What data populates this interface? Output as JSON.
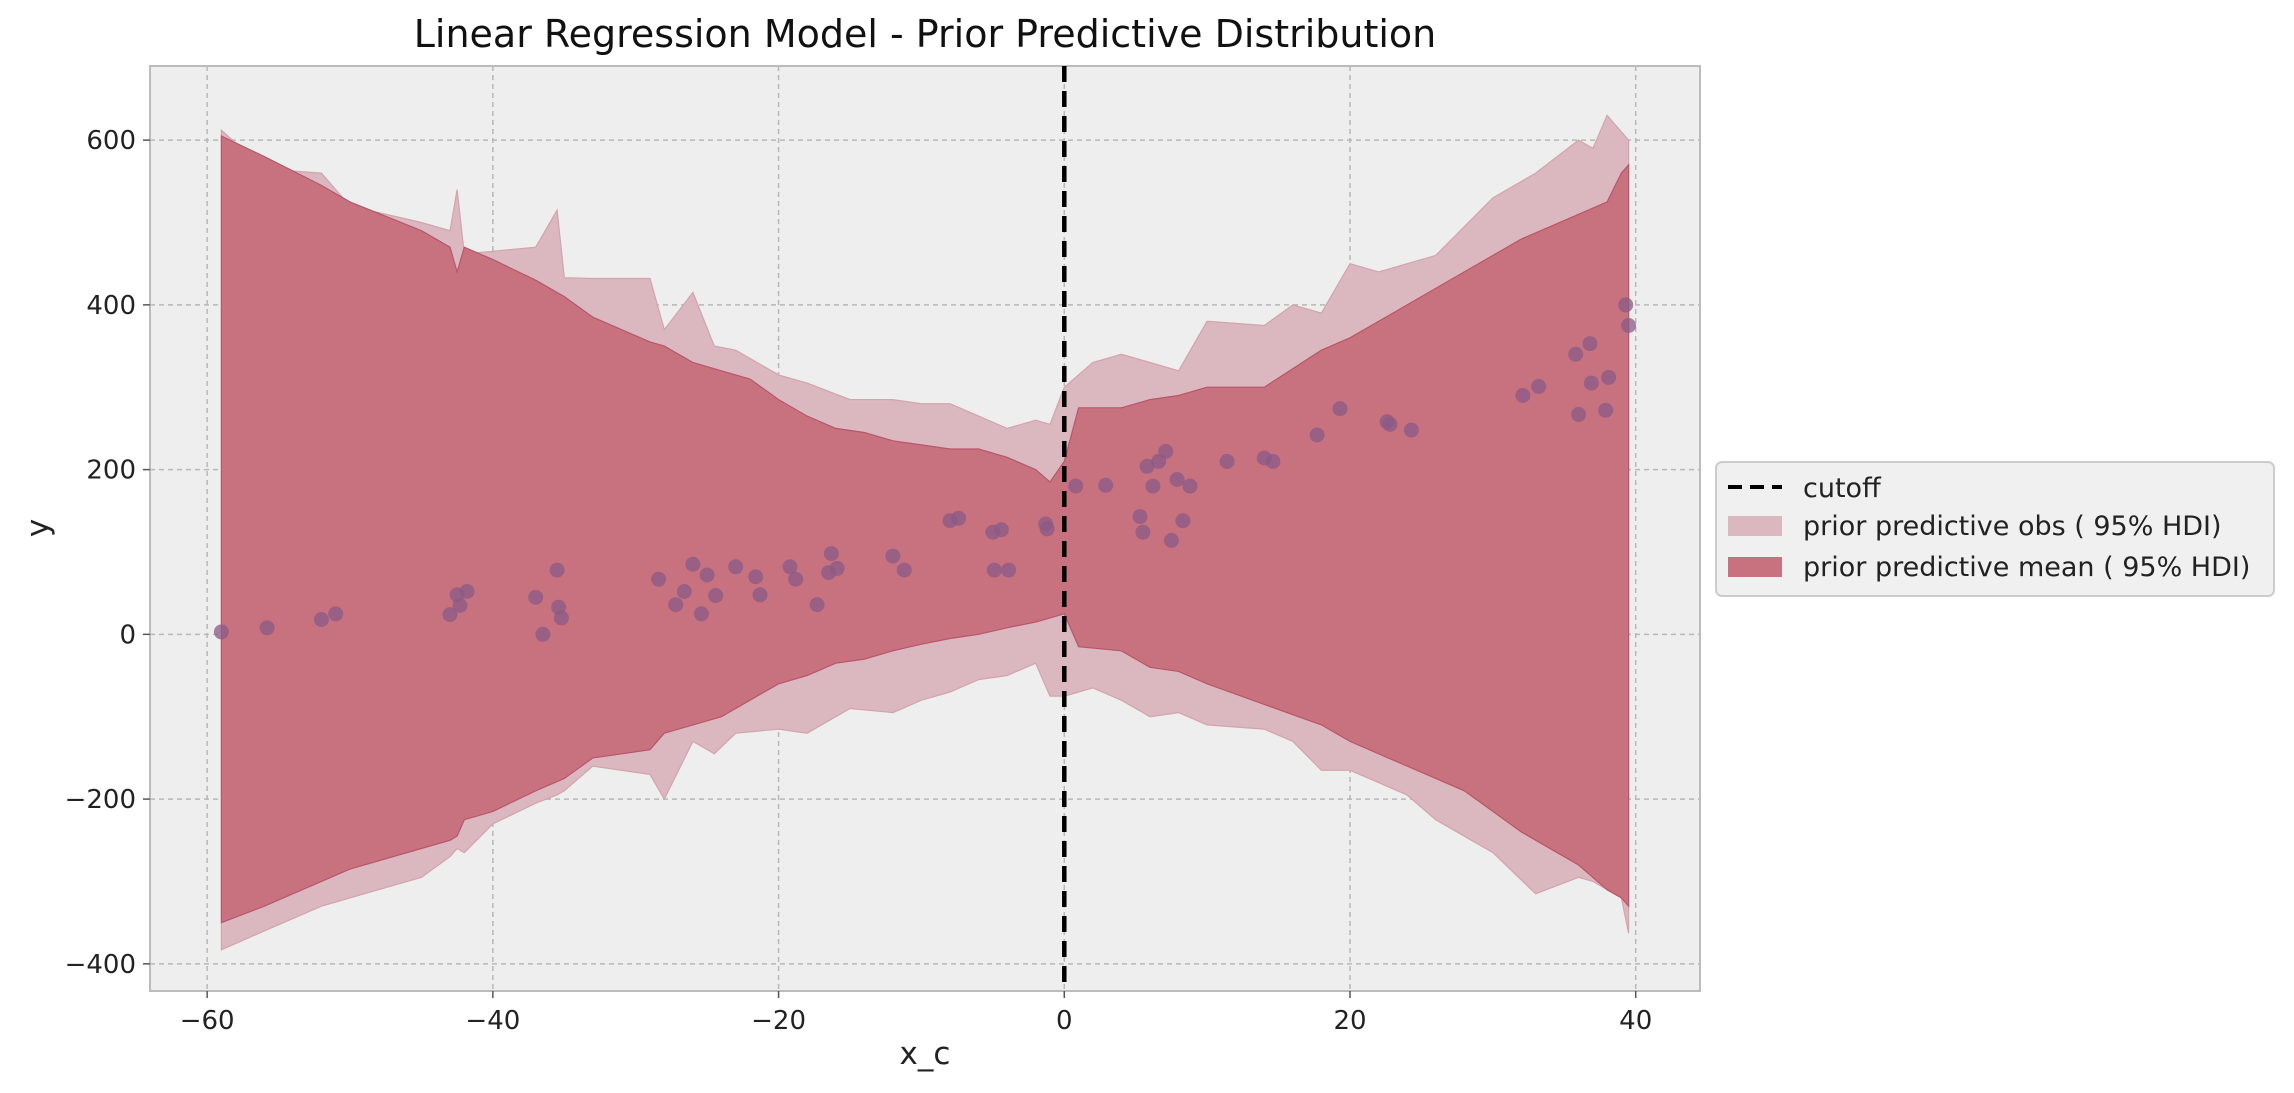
{
  "chart_data": {
    "type": "area",
    "title": "Linear Regression Model - Prior Predictive Distribution",
    "xlabel": "x_c",
    "ylabel": "y",
    "xlim": [
      -64,
      44.5
    ],
    "ylim": [
      -433,
      690
    ],
    "xticks": [
      -60,
      -40,
      -20,
      0,
      20,
      40
    ],
    "yticks": [
      -400,
      -200,
      0,
      200,
      400,
      600
    ],
    "grid": true,
    "legend_position": "center-right-outside",
    "cutoff": {
      "name": "cutoff",
      "x": 0,
      "color": "#000000"
    },
    "bands": [
      {
        "name": "prior predictive obs ( 95% HDI)",
        "color": "#dbb7bf",
        "x": [
          -59,
          -56,
          -52,
          -50,
          -45,
          -43,
          -42.5,
          -42,
          -40,
          -37,
          -35.5,
          -35,
          -33,
          -29,
          -28,
          -26,
          -24.5,
          -23,
          -20,
          -18,
          -15,
          -12,
          -10,
          -8,
          -6,
          -4,
          -2,
          -1,
          0,
          2,
          4,
          6,
          8,
          10,
          14,
          16,
          18,
          20,
          22,
          24,
          26,
          30,
          33,
          36,
          37,
          38,
          39,
          39.5
        ],
        "upper": [
          612,
          565,
          560,
          520,
          500,
          490,
          540,
          462,
          465,
          470,
          515,
          433,
          432,
          432,
          370,
          415,
          350,
          345,
          315,
          305,
          285,
          285,
          280,
          280,
          265,
          250,
          260,
          255,
          300,
          330,
          340,
          330,
          320,
          380,
          375,
          400,
          390,
          450,
          440,
          450,
          460,
          530,
          560,
          600,
          590,
          630,
          610,
          600
        ],
        "lower": [
          -383,
          -360,
          -330,
          -320,
          -295,
          -270,
          -260,
          -265,
          -230,
          -205,
          -195,
          -190,
          -160,
          -170,
          -200,
          -130,
          -145,
          -120,
          -115,
          -120,
          -90,
          -95,
          -80,
          -70,
          -55,
          -50,
          -35,
          -75,
          -75,
          -65,
          -80,
          -100,
          -95,
          -110,
          -115,
          -130,
          -165,
          -165,
          -180,
          -195,
          -225,
          -265,
          -315,
          -295,
          -300,
          -310,
          -320,
          -363
        ]
      },
      {
        "name": "prior predictive mean ( 95% HDI)",
        "color": "#c9727f",
        "x": [
          -59,
          -56,
          -52,
          -50,
          -45,
          -43,
          -42.5,
          -42,
          -40,
          -37,
          -35,
          -33,
          -29,
          -28,
          -26,
          -24,
          -22,
          -20,
          -18,
          -16,
          -14,
          -12,
          -10,
          -8,
          -6,
          -4,
          -2,
          -1,
          0,
          1,
          4,
          6,
          8,
          10,
          14,
          18,
          20,
          24,
          28,
          32,
          36,
          38,
          39,
          39.5
        ],
        "upper": [
          605,
          580,
          545,
          525,
          490,
          470,
          440,
          470,
          455,
          430,
          410,
          385,
          355,
          350,
          330,
          320,
          310,
          285,
          265,
          250,
          245,
          235,
          230,
          225,
          225,
          215,
          200,
          185,
          210,
          275,
          275,
          285,
          290,
          300,
          300,
          345,
          360,
          400,
          440,
          480,
          510,
          525,
          560,
          570
        ],
        "lower": [
          -350,
          -330,
          -300,
          -285,
          -260,
          -250,
          -245,
          -225,
          -215,
          -190,
          -175,
          -150,
          -140,
          -120,
          -110,
          -100,
          -80,
          -60,
          -50,
          -35,
          -30,
          -20,
          -12,
          -5,
          0,
          8,
          15,
          20,
          25,
          -15,
          -20,
          -40,
          -45,
          -60,
          -85,
          -110,
          -130,
          -160,
          -190,
          -240,
          -280,
          -310,
          -320,
          -330
        ]
      }
    ],
    "points": {
      "name": "observations",
      "color": "#8a5a85",
      "x": [
        -59,
        -55.8,
        -52,
        -51,
        -43,
        -42.5,
        -42.3,
        -41.8,
        -37,
        -36.5,
        -35.5,
        -35.4,
        -35.2,
        -28.4,
        -27.2,
        -26.6,
        -26,
        -25.4,
        -25,
        -24.4,
        -23,
        -21.6,
        -21.3,
        -19.2,
        -18.8,
        -17.3,
        -16.5,
        -16.3,
        -15.9,
        -12,
        -11.2,
        -8,
        -7.4,
        -5,
        -4.9,
        -4.4,
        -3.9,
        -1.3,
        -1.2,
        0.8,
        2.9,
        5.3,
        5.5,
        5.8,
        6.2,
        6.6,
        7.1,
        7.5,
        7.9,
        8.3,
        8.8,
        11.4,
        14,
        14.6,
        17.7,
        19.3,
        22.6,
        22.8,
        24.3,
        32.1,
        33.2,
        35.8,
        36,
        36.8,
        36.9,
        37.9,
        38.1,
        39.3,
        39.5
      ],
      "y": [
        3,
        8,
        18,
        25,
        24,
        48,
        35,
        52,
        45,
        0,
        78,
        33,
        20,
        67,
        36,
        52,
        85,
        25,
        72,
        47,
        82,
        70,
        48,
        82,
        67,
        36,
        75,
        98,
        80,
        95,
        78,
        138,
        141,
        124,
        78,
        127,
        78,
        134,
        128,
        180,
        181,
        143,
        124,
        204,
        180,
        210,
        222,
        114,
        188,
        138,
        180,
        210,
        214,
        210,
        242,
        274,
        258,
        255,
        248,
        290,
        301,
        340,
        267,
        353,
        305,
        272,
        312,
        400,
        375
      ]
    }
  }
}
